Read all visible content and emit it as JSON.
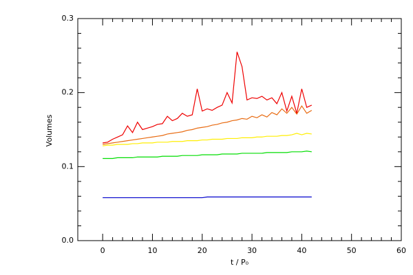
{
  "chart_data": {
    "type": "line",
    "x_label": "t / P₀",
    "y_label": "Volumes",
    "x": [
      0,
      1,
      2,
      3,
      4,
      5,
      6,
      7,
      8,
      9,
      10,
      11,
      12,
      13,
      14,
      15,
      16,
      17,
      18,
      19,
      20,
      21,
      22,
      23,
      24,
      25,
      26,
      27,
      28,
      29,
      30,
      31,
      32,
      33,
      34,
      35,
      36,
      37,
      38,
      39,
      40,
      41,
      42
    ],
    "series": [
      {
        "color": "#0000cc",
        "values": [
          0.058,
          0.058,
          0.058,
          0.058,
          0.058,
          0.058,
          0.058,
          0.058,
          0.058,
          0.058,
          0.058,
          0.058,
          0.058,
          0.058,
          0.058,
          0.058,
          0.058,
          0.058,
          0.058,
          0.058,
          0.058,
          0.059,
          0.059,
          0.059,
          0.059,
          0.059,
          0.059,
          0.059,
          0.059,
          0.059,
          0.059,
          0.059,
          0.059,
          0.059,
          0.059,
          0.059,
          0.059,
          0.059,
          0.059,
          0.059,
          0.059,
          0.059,
          0.059
        ]
      },
      {
        "color": "#00dd00",
        "values": [
          0.111,
          0.111,
          0.111,
          0.112,
          0.112,
          0.112,
          0.112,
          0.113,
          0.113,
          0.113,
          0.113,
          0.113,
          0.114,
          0.114,
          0.114,
          0.114,
          0.115,
          0.115,
          0.115,
          0.115,
          0.116,
          0.116,
          0.116,
          0.116,
          0.117,
          0.117,
          0.117,
          0.117,
          0.118,
          0.118,
          0.118,
          0.118,
          0.118,
          0.119,
          0.119,
          0.119,
          0.119,
          0.119,
          0.12,
          0.12,
          0.12,
          0.121,
          0.12
        ]
      },
      {
        "color": "#ffee00",
        "values": [
          0.128,
          0.129,
          0.129,
          0.13,
          0.13,
          0.13,
          0.131,
          0.131,
          0.132,
          0.132,
          0.132,
          0.133,
          0.133,
          0.133,
          0.134,
          0.134,
          0.134,
          0.135,
          0.135,
          0.135,
          0.136,
          0.136,
          0.137,
          0.137,
          0.137,
          0.138,
          0.138,
          0.138,
          0.139,
          0.139,
          0.139,
          0.14,
          0.14,
          0.141,
          0.141,
          0.141,
          0.142,
          0.142,
          0.143,
          0.145,
          0.143,
          0.145,
          0.144
        ]
      },
      {
        "color": "#e86a10",
        "values": [
          0.13,
          0.131,
          0.132,
          0.133,
          0.134,
          0.135,
          0.136,
          0.137,
          0.138,
          0.139,
          0.14,
          0.141,
          0.142,
          0.144,
          0.145,
          0.146,
          0.147,
          0.149,
          0.15,
          0.152,
          0.153,
          0.154,
          0.156,
          0.157,
          0.159,
          0.16,
          0.162,
          0.163,
          0.165,
          0.164,
          0.168,
          0.166,
          0.17,
          0.167,
          0.173,
          0.17,
          0.178,
          0.172,
          0.18,
          0.171,
          0.182,
          0.172,
          0.176
        ]
      },
      {
        "color": "#ee0000",
        "values": [
          0.132,
          0.133,
          0.137,
          0.14,
          0.143,
          0.155,
          0.146,
          0.16,
          0.15,
          0.152,
          0.154,
          0.157,
          0.158,
          0.168,
          0.162,
          0.165,
          0.172,
          0.168,
          0.17,
          0.205,
          0.175,
          0.178,
          0.176,
          0.18,
          0.183,
          0.2,
          0.186,
          0.255,
          0.235,
          0.19,
          0.193,
          0.192,
          0.195,
          0.19,
          0.193,
          0.185,
          0.2,
          0.175,
          0.195,
          0.172,
          0.205,
          0.18,
          0.183
        ]
      }
    ],
    "xlim": [
      -5,
      60
    ],
    "xticks": [
      0,
      10,
      20,
      30,
      40,
      50,
      60
    ],
    "ylim": [
      0,
      0.3
    ],
    "yticks": [
      {
        "value": 0,
        "label": "0.0"
      },
      0.1,
      0.2,
      0.3
    ]
  }
}
